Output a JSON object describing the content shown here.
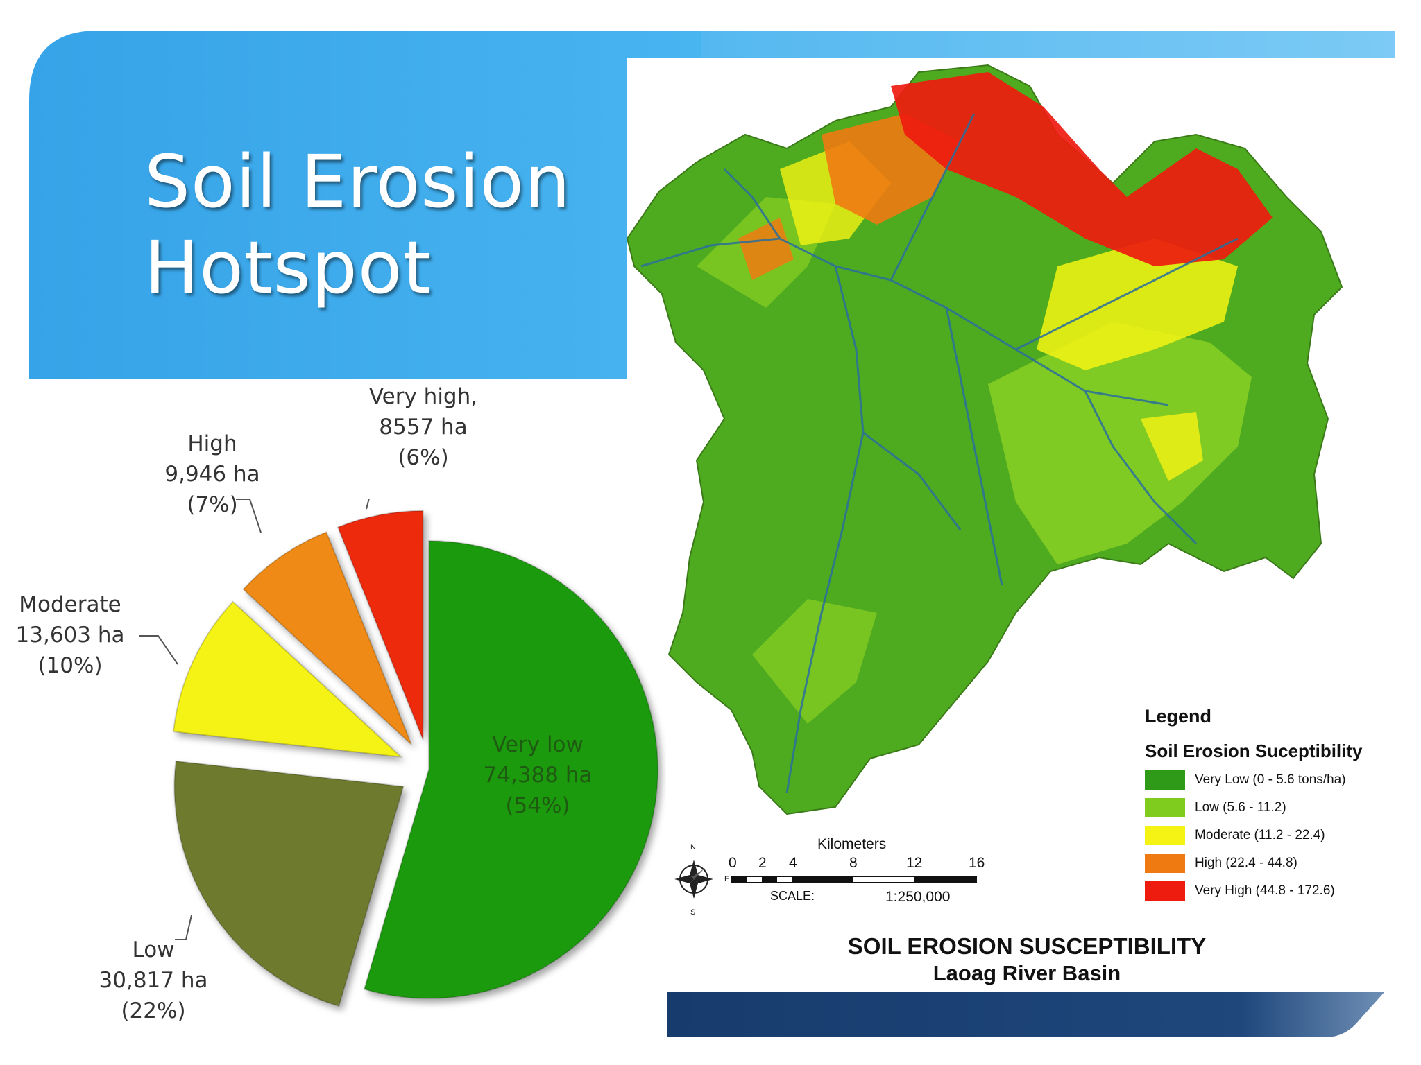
{
  "slide": {
    "title_line1": "Soil Erosion",
    "title_line2": "Hotspot"
  },
  "colors": {
    "header_blue": "#3aa6e8",
    "bottom_bar_navy": "#1e4475",
    "very_low": "#1e9a0c",
    "low": "#6e7a2e",
    "moderate": "#f5f314",
    "high": "#f08a12",
    "very_high": "#ee2b0f"
  },
  "chart_data": {
    "type": "pie",
    "slices": [
      {
        "name": "Very low",
        "area": "74,388 ha",
        "percent_label": "(54%)",
        "value": 54,
        "color": "#1e9a0c"
      },
      {
        "name": "Low",
        "area": "30,817 ha",
        "percent_label": "(22%)",
        "value": 22,
        "color": "#6e7a2e"
      },
      {
        "name": "Moderate",
        "area": "13,603 ha",
        "percent_label": "(10%)",
        "value": 10,
        "color": "#f5f314"
      },
      {
        "name": "High",
        "area": "9,946 ha",
        "percent_label": "(7%)",
        "value": 7,
        "color": "#f08a12"
      },
      {
        "name": "Very high,",
        "area": "8557 ha",
        "percent_label": "(6%)",
        "value": 6,
        "color": "#ee2b0f"
      }
    ]
  },
  "map": {
    "legend_title": "Legend",
    "legend_subtitle": "Soil Erosion Suceptibility",
    "legend_items": [
      {
        "label": "Very Low (0 - 5.6  tons/ha)",
        "color": "#2f9a18"
      },
      {
        "label": "Low (5.6 - 11.2)",
        "color": "#7fcc1e"
      },
      {
        "label": "Moderate (11.2 - 22.4)",
        "color": "#f5f314"
      },
      {
        "label": "High (22.4 - 44.8)",
        "color": "#f07a12"
      },
      {
        "label": "Very High (44.8 - 172.6)",
        "color": "#ee1b0f"
      }
    ],
    "scale": {
      "units": "Kilometers",
      "ticks": [
        "0",
        "2",
        "4",
        "8",
        "12",
        "16"
      ],
      "scale_label": "SCALE:",
      "ratio": "1:250,000"
    },
    "compass": {
      "n": "N",
      "e": "E",
      "s": "S"
    },
    "title_line1": "SOIL EROSION SUSCEPTIBILITY",
    "title_line2": "Laoag River Basin"
  }
}
